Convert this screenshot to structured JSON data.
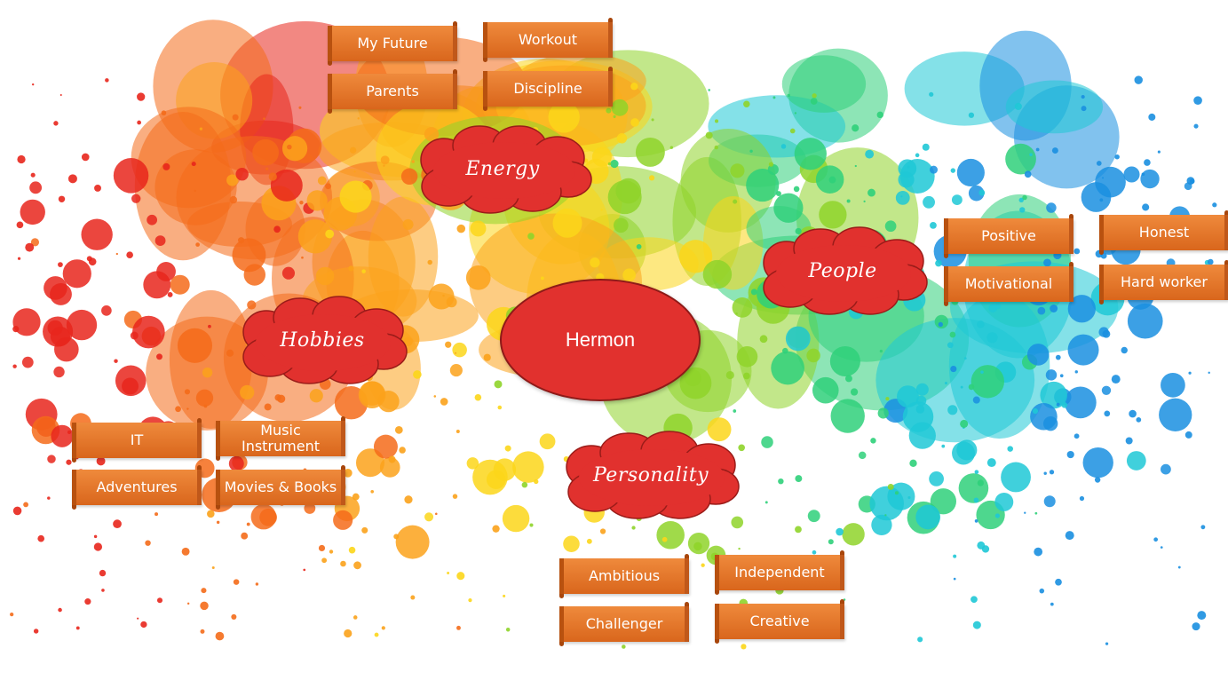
{
  "center": {
    "label": "Hermon"
  },
  "branches": [
    {
      "label": "Energy",
      "items": [
        "My Future",
        "Workout",
        "Parents",
        "Discipline"
      ]
    },
    {
      "label": "Hobbies",
      "items": [
        "IT",
        "Music Instrument",
        "Adventures",
        "Movies & Books"
      ]
    },
    {
      "label": "People",
      "items": [
        "Positive",
        "Honest",
        "Motivational",
        "Hard worker"
      ]
    },
    {
      "label": "Personality",
      "items": [
        "Ambitious",
        "Independent",
        "Challenger",
        "Creative"
      ]
    }
  ],
  "colors": {
    "center_fill": "#e1312e",
    "cloud_fill": "#e1312e",
    "scroll_fill": "#e5772a",
    "splash_palette": [
      "#e8261c",
      "#f46b1a",
      "#fba21b",
      "#fcd61a",
      "#8fd42a",
      "#2fd07a",
      "#1fc8d6",
      "#1a8fe0"
    ]
  }
}
